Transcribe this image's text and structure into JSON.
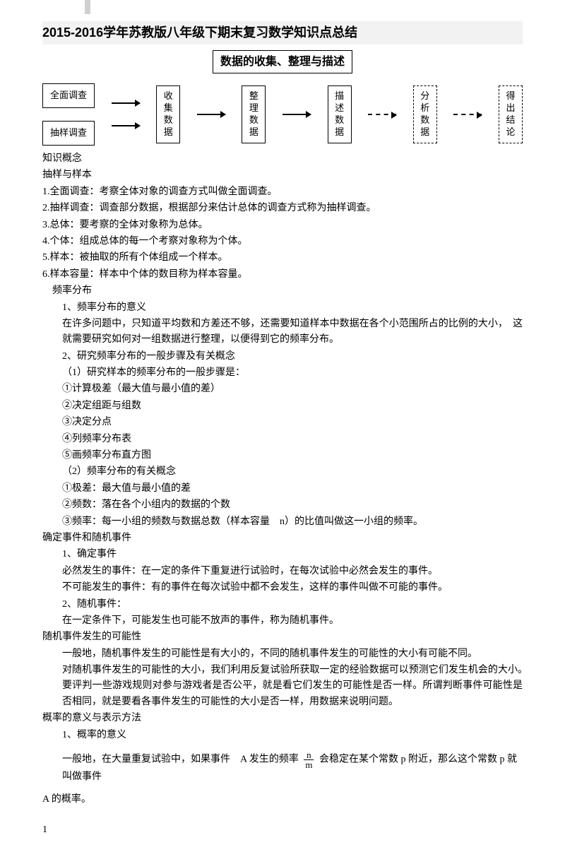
{
  "header": {
    "main_title": "2015-2016学年苏教版八年级下期末复习数学知识点总结",
    "section_title": "数据的收集、整理与描述"
  },
  "flowchart": {
    "left_box_1": "全面调查",
    "left_box_2": "抽样调查",
    "step1": "收\n集\n数\n据",
    "step2": "整\n理\n数\n据",
    "step3": "描\n述\n数\n据",
    "step4": "分\n析\n数\n据",
    "step5": "得\n出\n结\n论"
  },
  "content": {
    "h_knowledge": "知识概念",
    "h_sample": "抽样与样本",
    "s1": "1.全面调查：考察全体对象的调查方式叫做全面调查。",
    "s2": "2.抽样调查：调查部分数据，根据部分来估计总体的调查方式称为抽样调查。",
    "s3": "3.总体：要考察的全体对象称为总体。",
    "s4": "4.个体：组成总体的每一个考察对象称为个体。",
    "s5": "5.样本：被抽取的所有个体组成一个样本。",
    "s6": "6.样本容量：样本中个体的数目称为样本容量。",
    "h_freq": "频率分布",
    "f1": "1、频率分布的意义",
    "f1_body": "在许多问题中，只知道平均数和方差还不够，还需要知道样本中数据在各个小范围所占的比例的大小，　这就需要研究如何对一组数据进行整理，以便得到它的频率分布。",
    "f2": "2、研究频率分布的一般步骤及有关概念",
    "f2_1": "（1）研究样本的频率分布的一般步骤是：",
    "f2_1_1": "①计算极差（最大值与最小值的差）",
    "f2_1_2": "②决定组距与组数",
    "f2_1_3": "③决定分点",
    "f2_1_4": "④列频率分布表",
    "f2_1_5": "⑤画频率分布直方图",
    "f2_2": "（2）频率分布的有关概念",
    "f2_2_1": "①极差：最大值与最小值的差",
    "f2_2_2": "②频数：落在各个小组内的数据的个数",
    "f2_2_3": "③频率：每一小组的频数与数据总数（样本容量　n）的比值叫做这一小组的频率。",
    "h_event": "确定事件和随机事件",
    "e1": "1、确定事件",
    "e1_1": "必然发生的事件：在一定的条件下重复进行试验时，在每次试验中必然会发生的事件。",
    "e1_2": "不可能发生的事件：有的事件在每次试验中都不会发生，这样的事件叫做不可能的事件。",
    "e2": "2、随机事件：",
    "e2_1": "在一定条件下，可能发生也可能不放声的事件，称为随机事件。",
    "h_poss": "随机事件发生的可能性",
    "p1": "一般地，随机事件发生的可能性是有大小的，不同的随机事件发生的可能性的大小有可能不同。",
    "p2": "对随机事件发生的可能性的大小，我们利用反复试验所获取一定的经验数据可以预测它们发生机会的大小。　要评判一些游戏规则对参与游戏者是否公平，就是看它们发生的可能性是否一样。所谓判断事件可能性是否相同，就是要看各事件发生的可能性的大小是否一样，用数据来说明问题。",
    "h_prob": "概率的意义与表示方法",
    "pr1": "1、概率的意义",
    "pr2_a": "一般地，在大量重复试验中，如果事件　A 发生的频率",
    "pr2_b": "会稳定在某个常数 p 附近，那么这个常数 p 就叫做事件",
    "pr3": "A 的概率。",
    "frac_num": "n",
    "frac_den": "m"
  },
  "page_number": "1"
}
